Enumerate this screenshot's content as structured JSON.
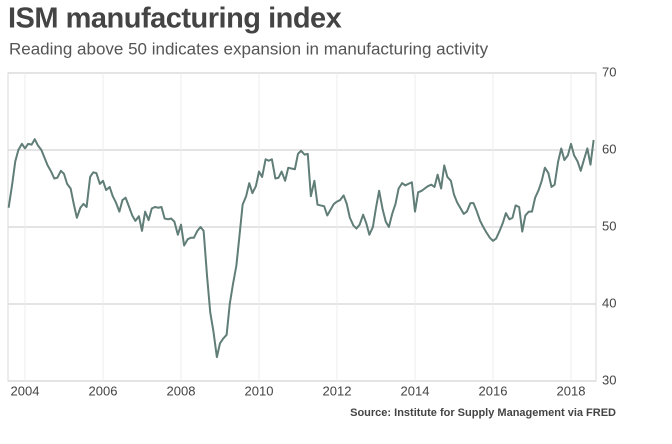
{
  "chart_data": {
    "type": "line",
    "title": "ISM manufacturing index",
    "subtitle": "Reading above 50 indicates expansion in manufacturing activity",
    "source": "Source: Institute for Supply Management via FRED",
    "xlim": [
      2003.6,
      2018.6
    ],
    "xticks": [
      2004,
      2006,
      2008,
      2010,
      2012,
      2014,
      2016,
      2018
    ],
    "ylim": [
      30,
      70
    ],
    "yticks": [
      30,
      40,
      50,
      60,
      70
    ],
    "grid": true,
    "x": [
      2003.58,
      2003.67,
      2003.75,
      2003.83,
      2003.92,
      2004.0,
      2004.08,
      2004.17,
      2004.25,
      2004.33,
      2004.42,
      2004.5,
      2004.58,
      2004.67,
      2004.75,
      2004.83,
      2004.92,
      2005.0,
      2005.08,
      2005.17,
      2005.25,
      2005.33,
      2005.42,
      2005.5,
      2005.58,
      2005.67,
      2005.75,
      2005.83,
      2005.92,
      2006.0,
      2006.08,
      2006.17,
      2006.25,
      2006.33,
      2006.42,
      2006.5,
      2006.58,
      2006.67,
      2006.75,
      2006.83,
      2006.92,
      2007.0,
      2007.08,
      2007.17,
      2007.25,
      2007.33,
      2007.42,
      2007.5,
      2007.58,
      2007.67,
      2007.75,
      2007.83,
      2007.92,
      2008.0,
      2008.08,
      2008.17,
      2008.25,
      2008.33,
      2008.42,
      2008.5,
      2008.58,
      2008.67,
      2008.75,
      2008.83,
      2008.92,
      2009.0,
      2009.08,
      2009.17,
      2009.25,
      2009.33,
      2009.42,
      2009.5,
      2009.58,
      2009.67,
      2009.75,
      2009.83,
      2009.92,
      2010.0,
      2010.08,
      2010.17,
      2010.25,
      2010.33,
      2010.42,
      2010.5,
      2010.58,
      2010.67,
      2010.75,
      2010.83,
      2010.92,
      2011.0,
      2011.08,
      2011.17,
      2011.25,
      2011.33,
      2011.42,
      2011.5,
      2011.58,
      2011.67,
      2011.75,
      2011.83,
      2011.92,
      2012.0,
      2012.08,
      2012.17,
      2012.25,
      2012.33,
      2012.42,
      2012.5,
      2012.58,
      2012.67,
      2012.75,
      2012.83,
      2012.92,
      2013.0,
      2013.08,
      2013.17,
      2013.25,
      2013.33,
      2013.42,
      2013.5,
      2013.58,
      2013.67,
      2013.75,
      2013.83,
      2013.92,
      2014.0,
      2014.08,
      2014.17,
      2014.25,
      2014.33,
      2014.42,
      2014.5,
      2014.58,
      2014.67,
      2014.75,
      2014.83,
      2014.92,
      2015.0,
      2015.08,
      2015.17,
      2015.25,
      2015.33,
      2015.42,
      2015.5,
      2015.58,
      2015.67,
      2015.75,
      2015.83,
      2015.92,
      2016.0,
      2016.08,
      2016.17,
      2016.25,
      2016.33,
      2016.42,
      2016.5,
      2016.58,
      2016.67,
      2016.75,
      2016.83,
      2016.92,
      2017.0,
      2017.08,
      2017.17,
      2017.25,
      2017.33,
      2017.42,
      2017.5,
      2017.58,
      2017.67,
      2017.75,
      2017.83,
      2017.92,
      2018.0,
      2018.08,
      2018.17,
      2018.25,
      2018.33,
      2018.42,
      2018.5,
      2018.58
    ],
    "series": [
      {
        "name": "ISM manufacturing index",
        "color": "#607d77",
        "values": [
          52.5,
          55.5,
          58.5,
          60,
          60.8,
          60.2,
          60.8,
          60.7,
          61.4,
          60.6,
          60.0,
          59.0,
          58.0,
          57.2,
          56.3,
          56.4,
          57.3,
          56.9,
          55.6,
          55.0,
          53.0,
          51.2,
          52.5,
          53.0,
          52.6,
          56.5,
          57.1,
          57.0,
          55.6,
          56.0,
          54.8,
          55.2,
          54.0,
          53.2,
          52.0,
          53.5,
          53.8,
          52.6,
          51.5,
          50.8,
          51.4,
          49.5,
          52.0,
          50.9,
          52.4,
          52.6,
          52.5,
          52.6,
          51.1,
          51.0,
          51.1,
          50.7,
          49.0,
          50.3,
          47.6,
          48.4,
          48.6,
          48.6,
          49.5,
          50.0,
          49.5,
          43.5,
          38.9,
          36.5,
          33.1,
          34.9,
          35.5,
          36.0,
          40.0,
          42.5,
          45.0,
          48.9,
          52.9,
          54.0,
          55.7,
          54.4,
          55.3,
          57.2,
          56.5,
          58.8,
          58.6,
          58.8,
          56.3,
          56.4,
          57.2,
          56.0,
          57.7,
          57.6,
          57.5,
          59.5,
          59.9,
          59.4,
          59.5,
          54.0,
          56.0,
          52.9,
          52.8,
          52.7,
          51.5,
          52.2,
          53.0,
          53.3,
          53.5,
          54.1,
          53.0,
          51.2,
          50.2,
          49.8,
          50.3,
          51.6,
          50.5,
          49.0,
          50.0,
          52.5,
          54.7,
          52.3,
          50.7,
          50.0,
          51.8,
          53.0,
          55.0,
          55.7,
          55.4,
          55.6,
          55.8,
          52.0,
          54.5,
          54.7,
          55.0,
          55.3,
          55.5,
          55.2,
          56.8,
          55.0,
          58.0,
          56.5,
          56.0,
          54.2,
          53.2,
          52.4,
          51.7,
          52.0,
          53.1,
          53.1,
          52.1,
          50.8,
          50.0,
          49.3,
          48.6,
          48.2,
          48.5,
          49.5,
          50.5,
          51.8,
          51.0,
          51.2,
          52.8,
          52.6,
          49.4,
          51.5,
          52.0,
          52.0,
          53.8,
          54.8,
          56.0,
          57.7,
          57.0,
          55.2,
          55.5,
          58.5,
          60.2,
          58.7,
          59.3,
          60.8,
          59.3,
          58.5,
          57.3,
          58.7,
          60.2,
          58.1,
          61.3
        ]
      }
    ]
  }
}
